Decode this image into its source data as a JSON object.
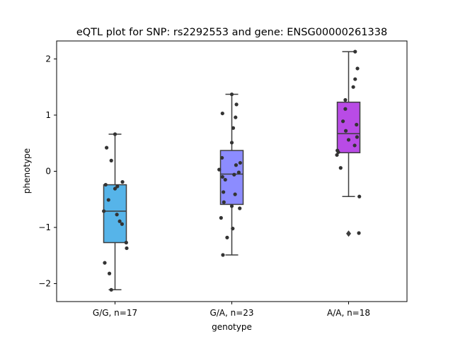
{
  "chart_data": {
    "type": "box",
    "title": "eQTL plot for SNP: rs2292553 and gene: ENSG00000261338",
    "xlabel": "genotype",
    "ylabel": "phenotype",
    "ylim": [
      -2.32,
      2.32
    ],
    "yticks": [
      -2,
      -1,
      0,
      1,
      2
    ],
    "grid": false,
    "categories": [
      "G/G, n=17",
      "G/A, n=23",
      "A/A, n=18"
    ],
    "boxes": [
      {
        "category": "G/G, n=17",
        "color": "#56b4e9",
        "q1": -1.27,
        "median": -0.71,
        "q3": -0.24,
        "whisker_low": -2.11,
        "whisker_high": 0.66,
        "outliers": []
      },
      {
        "category": "G/A, n=23",
        "color": "#8c8cff",
        "q1": -0.59,
        "median": -0.05,
        "q3": 0.37,
        "whisker_low": -1.49,
        "whisker_high": 1.37,
        "outliers": []
      },
      {
        "category": "A/A, n=18",
        "color": "#b94be6",
        "q1": 0.33,
        "median": 0.67,
        "q3": 1.23,
        "whisker_low": -0.45,
        "whisker_high": 2.13,
        "outliers": [
          -1.11
        ]
      }
    ],
    "points": [
      {
        "category": "G/G, n=17",
        "values": [
          {
            "jitter": 0.0,
            "y": 0.66
          },
          {
            "jitter": -0.18,
            "y": 0.42
          },
          {
            "jitter": -0.08,
            "y": 0.19
          },
          {
            "jitter": -0.2,
            "y": -0.24
          },
          {
            "jitter": 0.05,
            "y": -0.27
          },
          {
            "jitter": 0.0,
            "y": -0.31
          },
          {
            "jitter": 0.16,
            "y": -0.19
          },
          {
            "jitter": -0.14,
            "y": -0.51
          },
          {
            "jitter": -0.24,
            "y": -0.71
          },
          {
            "jitter": 0.04,
            "y": -0.77
          },
          {
            "jitter": 0.1,
            "y": -0.89
          },
          {
            "jitter": 0.15,
            "y": -0.94
          },
          {
            "jitter": 0.24,
            "y": -1.27
          },
          {
            "jitter": 0.25,
            "y": -1.37
          },
          {
            "jitter": -0.22,
            "y": -1.63
          },
          {
            "jitter": -0.12,
            "y": -1.82
          },
          {
            "jitter": -0.08,
            "y": -2.11
          }
        ]
      },
      {
        "category": "G/A, n=23",
        "values": [
          {
            "jitter": 0.0,
            "y": 1.37
          },
          {
            "jitter": 0.1,
            "y": 1.19
          },
          {
            "jitter": -0.2,
            "y": 1.03
          },
          {
            "jitter": 0.08,
            "y": 0.96
          },
          {
            "jitter": 0.03,
            "y": 0.77
          },
          {
            "jitter": 0.0,
            "y": 0.51
          },
          {
            "jitter": -0.21,
            "y": 0.24
          },
          {
            "jitter": 0.18,
            "y": 0.15
          },
          {
            "jitter": 0.09,
            "y": 0.11
          },
          {
            "jitter": -0.27,
            "y": 0.03
          },
          {
            "jitter": 0.15,
            "y": -0.02
          },
          {
            "jitter": 0.05,
            "y": -0.06
          },
          {
            "jitter": -0.2,
            "y": -0.1
          },
          {
            "jitter": -0.14,
            "y": -0.15
          },
          {
            "jitter": -0.18,
            "y": -0.37
          },
          {
            "jitter": 0.07,
            "y": -0.41
          },
          {
            "jitter": -0.17,
            "y": -0.55
          },
          {
            "jitter": 0.0,
            "y": -0.62
          },
          {
            "jitter": 0.17,
            "y": -0.66
          },
          {
            "jitter": -0.23,
            "y": -0.83
          },
          {
            "jitter": 0.02,
            "y": -1.02
          },
          {
            "jitter": -0.1,
            "y": -1.18
          },
          {
            "jitter": -0.19,
            "y": -1.49
          }
        ]
      },
      {
        "category": "A/A, n=18",
        "values": [
          {
            "jitter": 0.14,
            "y": 2.13
          },
          {
            "jitter": 0.19,
            "y": 1.83
          },
          {
            "jitter": 0.14,
            "y": 1.64
          },
          {
            "jitter": 0.1,
            "y": 1.5
          },
          {
            "jitter": -0.07,
            "y": 1.27
          },
          {
            "jitter": -0.07,
            "y": 1.11
          },
          {
            "jitter": -0.12,
            "y": 0.89
          },
          {
            "jitter": 0.17,
            "y": 0.83
          },
          {
            "jitter": -0.06,
            "y": 0.72
          },
          {
            "jitter": 0.18,
            "y": 0.61
          },
          {
            "jitter": 0.0,
            "y": 0.56
          },
          {
            "jitter": 0.13,
            "y": 0.46
          },
          {
            "jitter": -0.24,
            "y": 0.37
          },
          {
            "jitter": -0.22,
            "y": 0.34
          },
          {
            "jitter": -0.25,
            "y": 0.29
          },
          {
            "jitter": -0.17,
            "y": 0.06
          },
          {
            "jitter": 0.23,
            "y": -0.45
          },
          {
            "jitter": 0.22,
            "y": -1.1
          }
        ]
      }
    ]
  }
}
